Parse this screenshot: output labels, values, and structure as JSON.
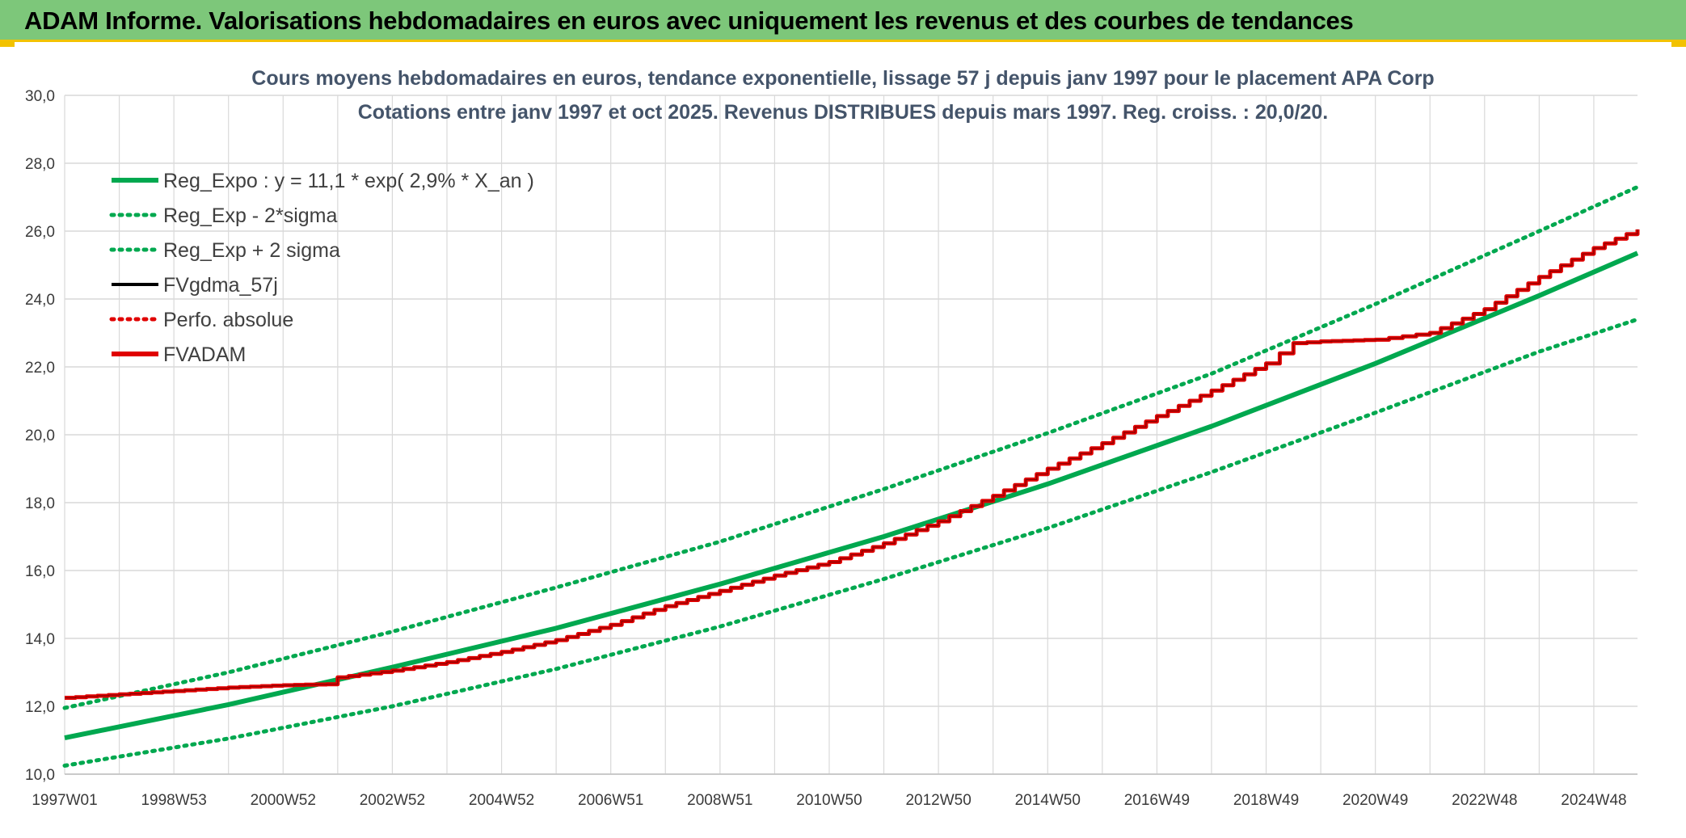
{
  "header": {
    "title": "ADAM Informe. Valorisations hebdomadaires en euros avec uniquement les revenus et des courbes de tendances"
  },
  "colors": {
    "header_bg": "#7dc77a",
    "accent_yellow": "#f2c200",
    "trend_green": "#00a84f",
    "fvadam_red": "#e00000",
    "grid": "#d9d9d9",
    "title_text": "#44546a"
  },
  "chart_data": {
    "type": "line",
    "title": "Cours moyens hebdomadaires en euros, tendance exponentielle, lissage 57 j depuis janv 1997 pour le placement APA Corp",
    "subtitle": "Cotations entre janv 1997 et oct 2025. Revenus DISTRIBUES depuis mars 1997. Reg. croiss. : 20,0/20.",
    "xlabel": "",
    "ylabel": "",
    "ylim": [
      10.0,
      30.0
    ],
    "y_ticks": [
      "10,0",
      "12,0",
      "14,0",
      "16,0",
      "18,0",
      "20,0",
      "22,0",
      "24,0",
      "26,0",
      "28,0",
      "30,0"
    ],
    "x_range": [
      1997.0,
      2025.8
    ],
    "x_ticks": [
      "1997W01",
      "1998W53",
      "2000W52",
      "2002W52",
      "2004W52",
      "2006W51",
      "2008W51",
      "2010W50",
      "2012W50",
      "2014W50",
      "2016W49",
      "2018W49",
      "2020W49",
      "2022W48",
      "2024W48"
    ],
    "x_tick_years": [
      1997.0,
      1999.0,
      2001.0,
      2003.0,
      2005.0,
      2007.0,
      2009.0,
      2011.0,
      2013.0,
      2015.0,
      2017.0,
      2019.0,
      2021.0,
      2023.0,
      2025.0
    ],
    "grid": true,
    "legend_position": "top-left",
    "legend": [
      {
        "name": "Reg_Expo : y = 11,1 * exp( 2,9% *  X_an )",
        "style": "solid-thick",
        "color": "#00a84f"
      },
      {
        "name": "Reg_Exp - 2*sigma",
        "style": "dotted",
        "color": "#00a84f"
      },
      {
        "name": "Reg_Exp + 2 sigma",
        "style": "dotted",
        "color": "#00a84f"
      },
      {
        "name": "FVgdma_57j",
        "style": "solid",
        "color": "#000000"
      },
      {
        "name": "Perfo. absolue",
        "style": "dotted",
        "color": "#e00000"
      },
      {
        "name": "FVADAM",
        "style": "solid-thick",
        "color": "#e00000"
      }
    ],
    "series": [
      {
        "name": "Reg_Expo : y = 11,1 * exp( 2,9% *  X_an )",
        "x": [
          1997.0,
          2000.0,
          2003.0,
          2006.0,
          2009.0,
          2012.0,
          2015.0,
          2018.0,
          2021.0,
          2024.0,
          2025.8
        ],
        "values": [
          11.07,
          12.05,
          13.15,
          14.3,
          15.6,
          17.0,
          18.55,
          20.25,
          22.1,
          24.1,
          25.35
        ]
      },
      {
        "name": "Reg_Exp - 2*sigma",
        "x": [
          1997.0,
          2000.0,
          2003.0,
          2006.0,
          2009.0,
          2012.0,
          2015.0,
          2018.0,
          2021.0,
          2024.0,
          2025.8
        ],
        "values": [
          10.25,
          11.05,
          12.0,
          13.1,
          14.35,
          15.75,
          17.25,
          18.9,
          20.65,
          22.45,
          23.4
        ]
      },
      {
        "name": "Reg_Exp + 2 sigma",
        "x": [
          1997.0,
          2000.0,
          2003.0,
          2006.0,
          2009.0,
          2012.0,
          2015.0,
          2018.0,
          2021.0,
          2024.0,
          2025.8
        ],
        "values": [
          11.95,
          13.0,
          14.2,
          15.5,
          16.85,
          18.4,
          20.05,
          21.8,
          23.85,
          26.0,
          27.3
        ]
      },
      {
        "name": "FVADAM",
        "x": [
          1997.0,
          1998.0,
          1999.0,
          2000.0,
          2001.0,
          2001.8,
          2002.0,
          2003.0,
          2004.0,
          2005.0,
          2006.0,
          2007.0,
          2008.0,
          2009.0,
          2010.0,
          2011.0,
          2012.0,
          2013.0,
          2014.0,
          2015.0,
          2016.0,
          2017.0,
          2018.0,
          2019.0,
          2019.5,
          2020.0,
          2021.0,
          2021.5,
          2022.0,
          2023.0,
          2024.0,
          2025.0,
          2025.8
        ],
        "values": [
          12.25,
          12.35,
          12.45,
          12.55,
          12.62,
          12.65,
          12.85,
          13.05,
          13.3,
          13.6,
          13.95,
          14.4,
          14.95,
          15.4,
          15.85,
          16.25,
          16.8,
          17.45,
          18.2,
          19.0,
          19.75,
          20.55,
          21.3,
          22.1,
          22.7,
          22.75,
          22.8,
          22.9,
          23.0,
          23.7,
          24.65,
          25.5,
          26.05
        ]
      }
    ]
  }
}
